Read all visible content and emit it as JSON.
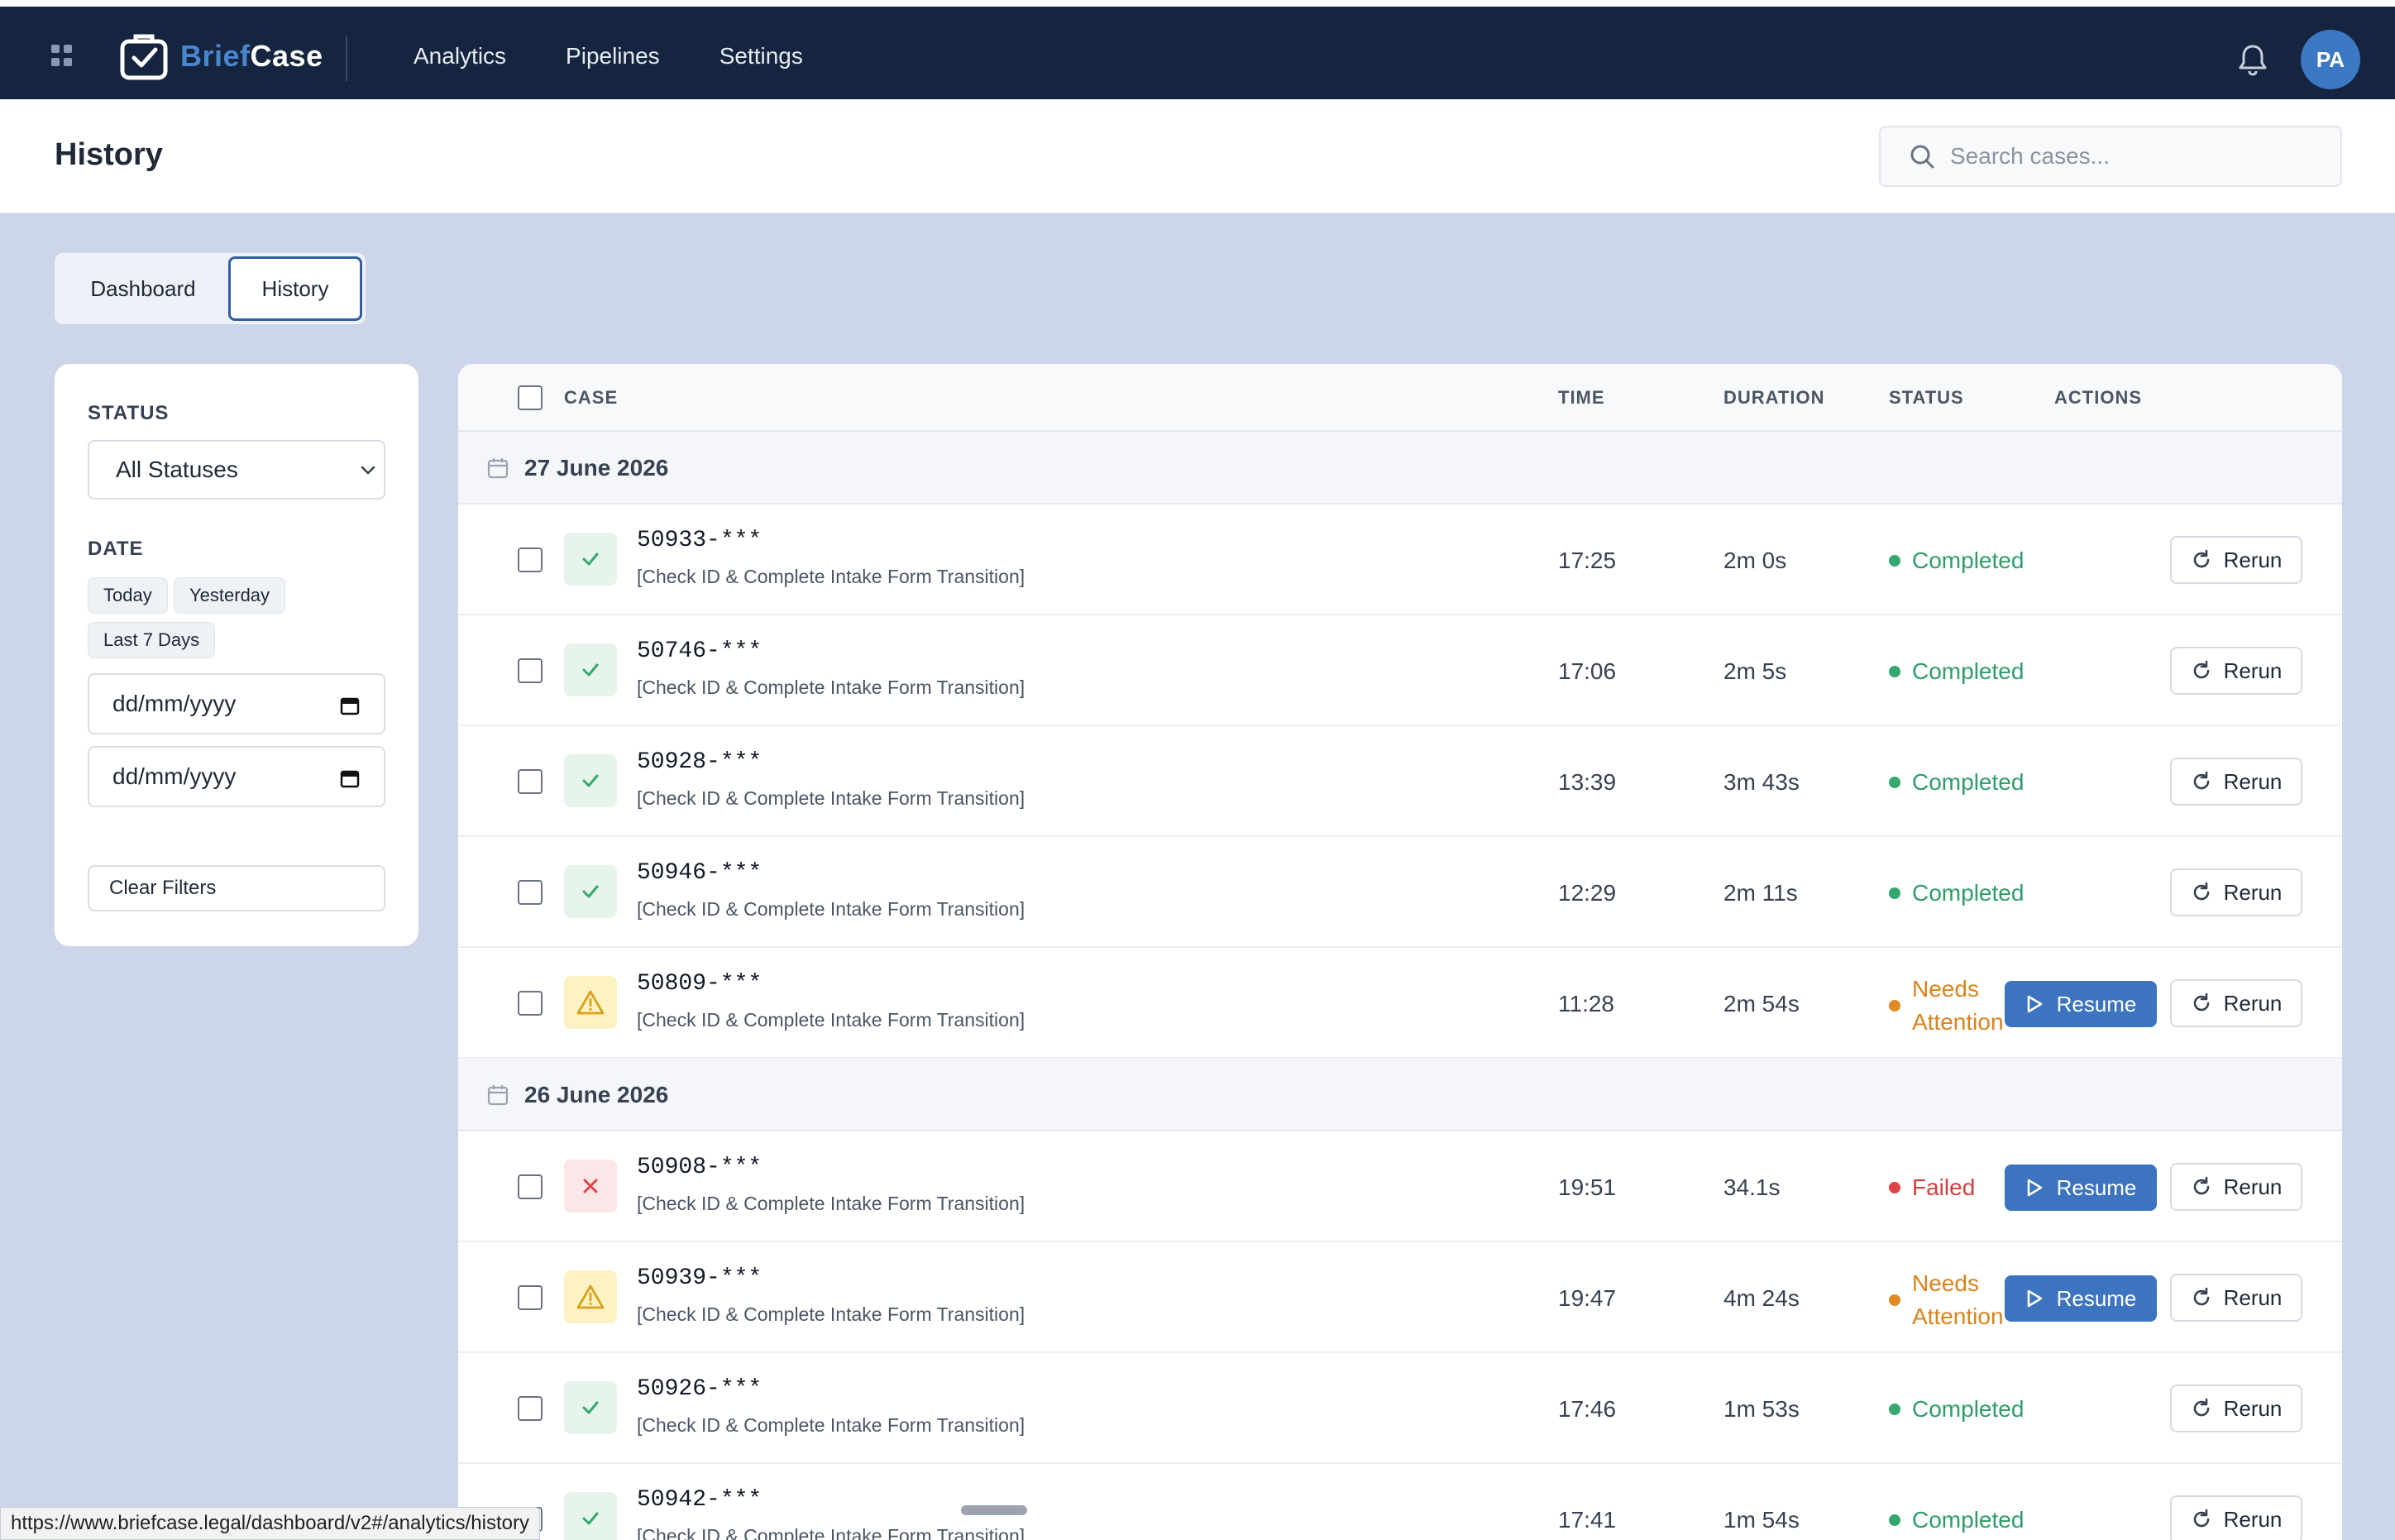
{
  "app": {
    "logo_part1": "Brief",
    "logo_part2": "Case",
    "avatar_initials": "PA"
  },
  "nav": {
    "items": [
      "Analytics",
      "Pipelines",
      "Settings"
    ]
  },
  "header": {
    "title": "History",
    "search_placeholder": "Search cases..."
  },
  "tabs": [
    "Dashboard",
    "History"
  ],
  "filters": {
    "status_label": "STATUS",
    "status_value": "All Statuses",
    "date_label": "DATE",
    "chips": [
      "Today",
      "Yesterday",
      "Last 7 Days"
    ],
    "date_from": "dd/mm/yyyy",
    "date_to": "dd/mm/yyyy",
    "clear_label": "Clear Filters"
  },
  "table": {
    "headers": {
      "case": "CASE",
      "time": "TIME",
      "duration": "DURATION",
      "status": "STATUS",
      "actions": "ACTIONS"
    },
    "resume_label": "Resume",
    "rerun_label": "Rerun",
    "groups": [
      {
        "date": "27 June 2026",
        "rows": [
          {
            "id": "50933-***",
            "desc": "[Check ID & Complete Intake Form Transition]",
            "time": "17:25",
            "duration": "2m 0s",
            "status": "Completed",
            "kind": "ok"
          },
          {
            "id": "50746-***",
            "desc": "[Check ID & Complete Intake Form Transition]",
            "time": "17:06",
            "duration": "2m 5s",
            "status": "Completed",
            "kind": "ok"
          },
          {
            "id": "50928-***",
            "desc": "[Check ID & Complete Intake Form Transition]",
            "time": "13:39",
            "duration": "3m 43s",
            "status": "Completed",
            "kind": "ok"
          },
          {
            "id": "50946-***",
            "desc": "[Check ID & Complete Intake Form Transition]",
            "time": "12:29",
            "duration": "2m 11s",
            "status": "Completed",
            "kind": "ok"
          },
          {
            "id": "50809-***",
            "desc": "[Check ID & Complete Intake Form Transition]",
            "time": "11:28",
            "duration": "2m 54s",
            "status": "Needs Attention",
            "kind": "warn"
          }
        ]
      },
      {
        "date": "26 June 2026",
        "rows": [
          {
            "id": "50908-***",
            "desc": "[Check ID & Complete Intake Form Transition]",
            "time": "19:51",
            "duration": "34.1s",
            "status": "Failed",
            "kind": "fail"
          },
          {
            "id": "50939-***",
            "desc": "[Check ID & Complete Intake Form Transition]",
            "time": "19:47",
            "duration": "4m 24s",
            "status": "Needs Attention",
            "kind": "warn"
          },
          {
            "id": "50926-***",
            "desc": "[Check ID & Complete Intake Form Transition]",
            "time": "17:46",
            "duration": "1m 53s",
            "status": "Completed",
            "kind": "ok"
          },
          {
            "id": "50942-***",
            "desc": "[Check ID & Complete Intake Form Transition]",
            "time": "17:41",
            "duration": "1m 54s",
            "status": "Completed",
            "kind": "ok"
          }
        ]
      }
    ]
  },
  "statusbar": {
    "url": "https://www.briefcase.legal/dashboard/v2#/analytics/history"
  },
  "colors": {
    "nav_bg": "#15253f",
    "accent": "#3c74c0",
    "success": "#34a86f",
    "warning": "#e08a25",
    "danger": "#e04545"
  }
}
